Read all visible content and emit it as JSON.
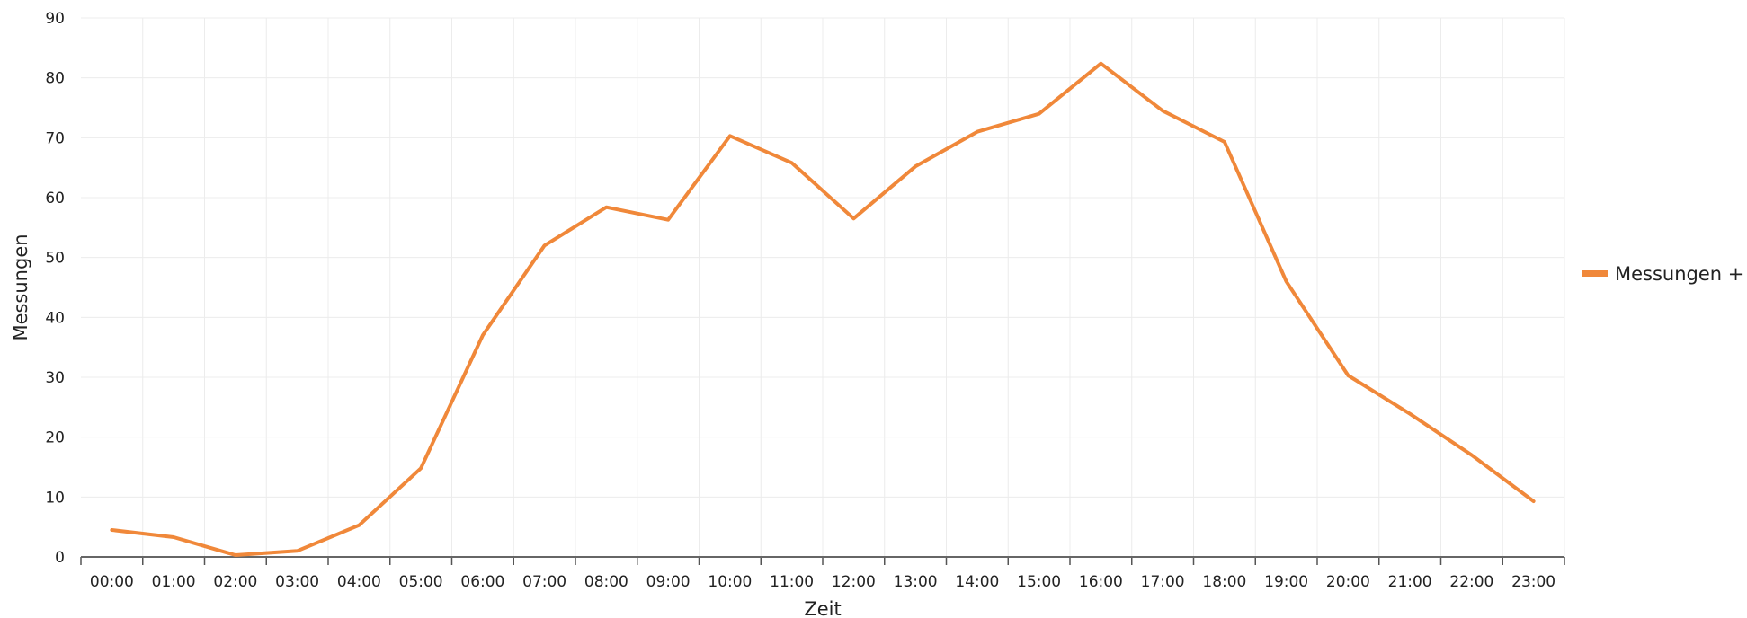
{
  "chart_data": {
    "type": "line",
    "title": "",
    "xlabel": "Zeit",
    "ylabel": "Messungen",
    "ylim": [
      0,
      90
    ],
    "yticks": [
      "0",
      "10",
      "20",
      "30",
      "40",
      "50",
      "60",
      "70",
      "80",
      "90"
    ],
    "categories": [
      "00:00",
      "01:00",
      "02:00",
      "03:00",
      "04:00",
      "05:00",
      "06:00",
      "07:00",
      "08:00",
      "09:00",
      "10:00",
      "11:00",
      "12:00",
      "13:00",
      "14:00",
      "15:00",
      "16:00",
      "17:00",
      "18:00",
      "19:00",
      "20:00",
      "21:00",
      "22:00",
      "23:00"
    ],
    "series": [
      {
        "name": "Messungen +",
        "color": "#f0883a",
        "values": [
          4.5,
          3.3,
          0.3,
          1.0,
          5.3,
          14.8,
          37.0,
          52.0,
          58.4,
          56.3,
          70.3,
          65.8,
          56.5,
          65.2,
          71.0,
          74.0,
          82.4,
          74.5,
          69.3,
          46.0,
          30.3,
          23.9,
          17.0,
          9.3
        ]
      }
    ],
    "grid": true,
    "legend_position": "right"
  }
}
